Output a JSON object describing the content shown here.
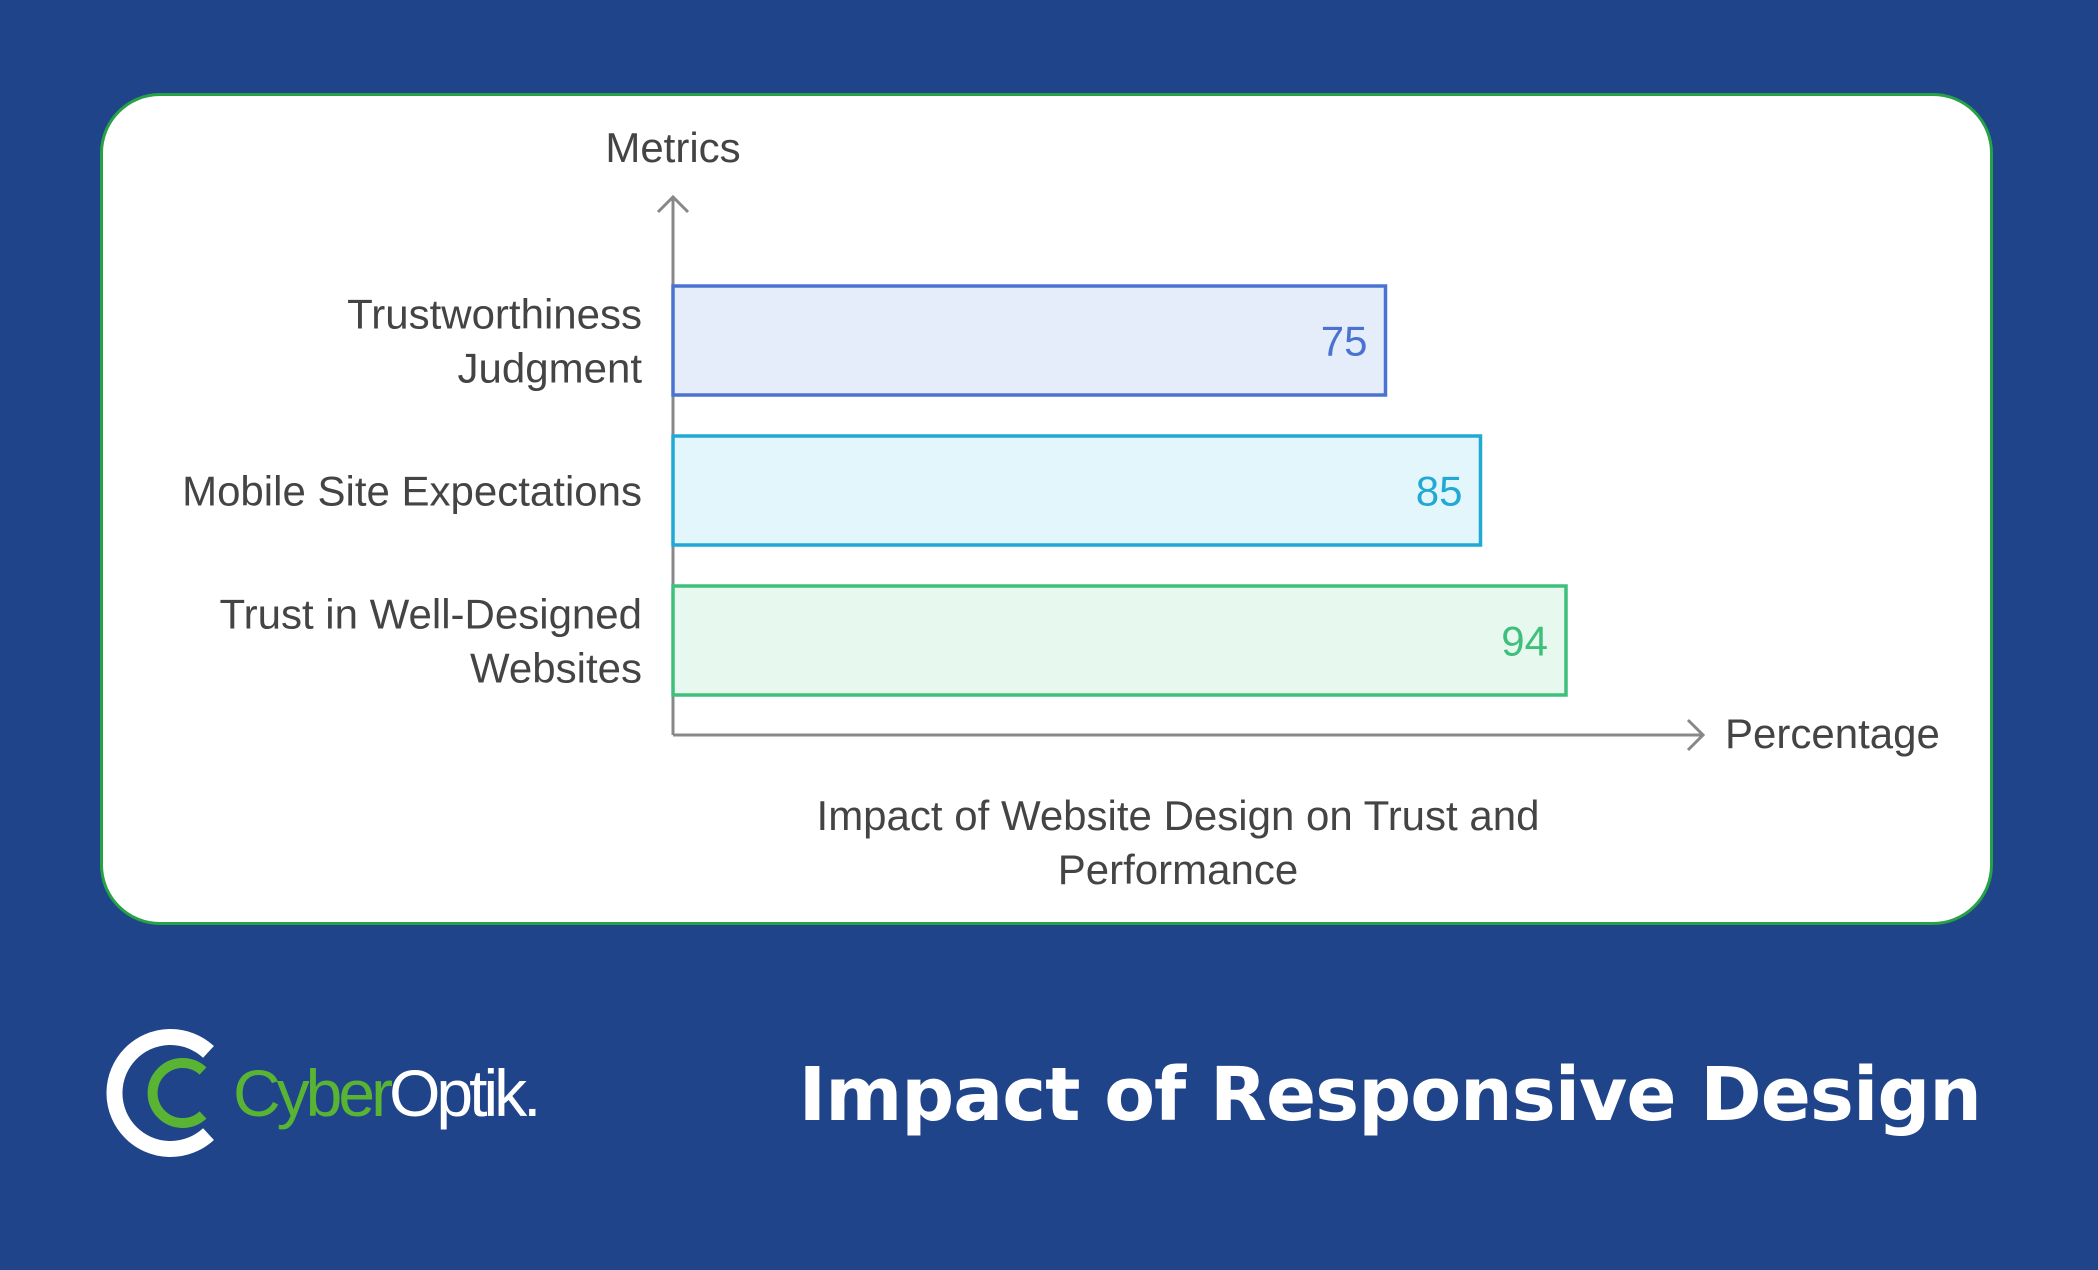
{
  "chart_data": {
    "type": "bar",
    "orientation": "horizontal",
    "categories": [
      "Trustworthiness Judgment",
      "Mobile Site Expectations",
      "Trust in Well-Designed Websites"
    ],
    "category_lines": [
      [
        "Trustworthiness",
        "Judgment"
      ],
      [
        "Mobile Site Expectations"
      ],
      [
        "Trust in Well-Designed",
        "Websites"
      ]
    ],
    "values": [
      75,
      85,
      94
    ],
    "value_labels": [
      "75",
      "85",
      "94"
    ],
    "colors": [
      {
        "stroke": "#4a73d1",
        "fill": "#e5edfb",
        "text": "#4a73d1"
      },
      {
        "stroke": "#20a9d4",
        "fill": "#e3f6fc",
        "text": "#20a9d4"
      },
      {
        "stroke": "#3fbf7c",
        "fill": "#e7f8ef",
        "text": "#3fbf7c"
      }
    ],
    "ylabel": "Metrics",
    "xlabel": "Percentage",
    "caption_lines": [
      "Impact of Website Design on Trust and",
      "Performance"
    ],
    "xlim": [
      0,
      100
    ],
    "grid": false,
    "legend": "none"
  },
  "logo": {
    "part1": "Cyber",
    "part2": "Optik."
  },
  "footer": {
    "title": "Impact of Responsive Design"
  },
  "colors": {
    "background": "#1f4489",
    "card_border": "#27a145",
    "logo_green": "#5ab434",
    "axis": "#888888",
    "text": "#444444"
  }
}
